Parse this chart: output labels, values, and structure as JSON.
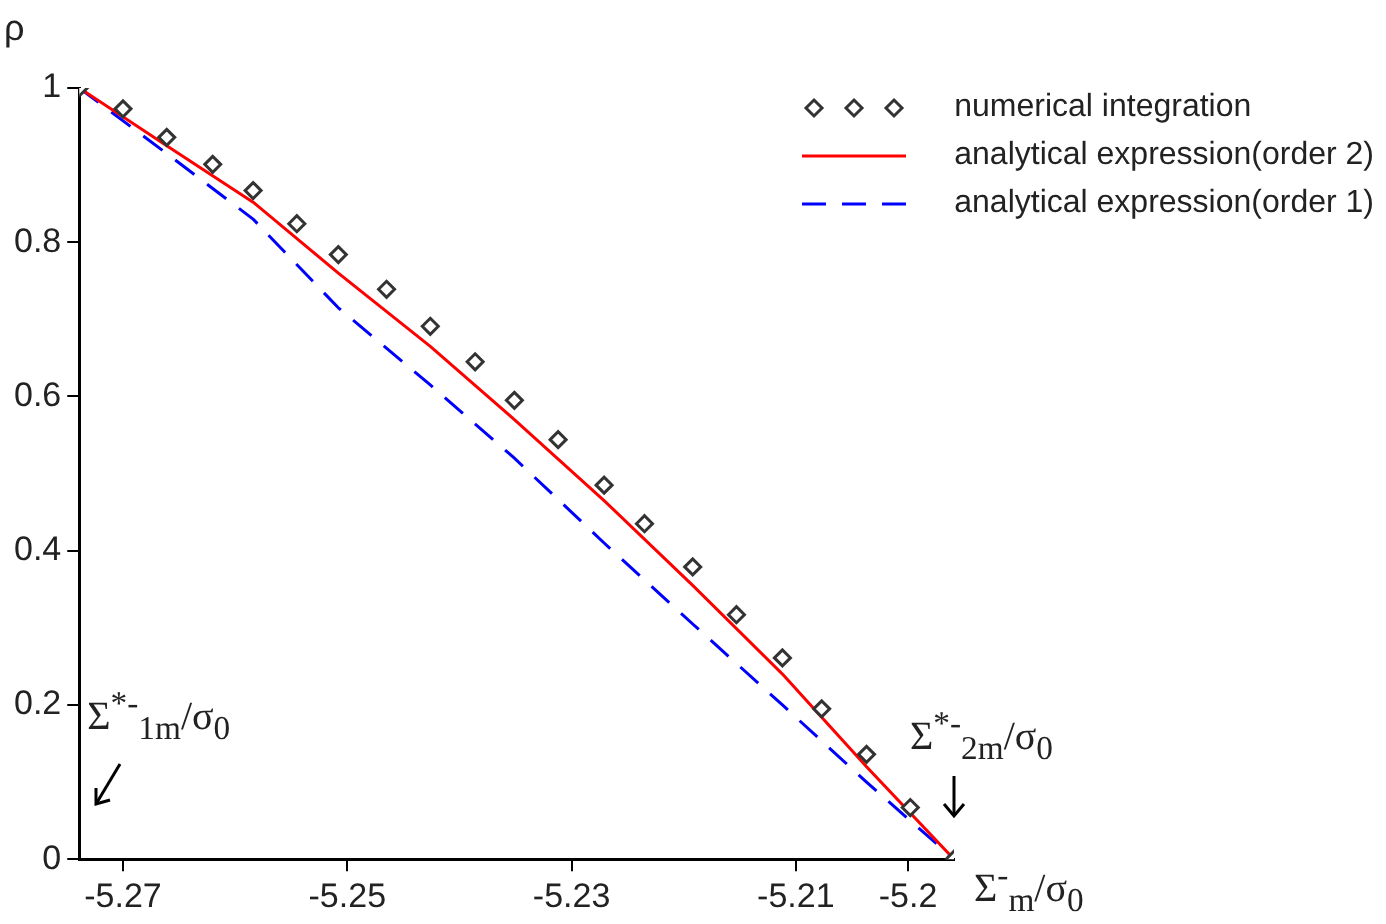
{
  "chart_data": {
    "type": "scatter",
    "xlabel": "Σ$^{-}$$_{m}$/σ$_{0}$",
    "ylabel": "ρ",
    "xlim": [
      -5.2739,
      -5.1959
    ],
    "xticks": [
      -5.27,
      -5.25,
      -5.23,
      -5.21,
      -5.2
    ],
    "ylim": [
      0,
      1
    ],
    "yticks": [
      0,
      0.2,
      0.4,
      0.6,
      0.8,
      1
    ],
    "grid": false,
    "legend": "top right",
    "series": [
      {
        "name": "numerical integration",
        "marker": "diamond",
        "color": "#333333",
        "x": [
          -5.2739,
          -5.27,
          -5.2661,
          -5.262,
          -5.2584,
          -5.2545,
          -5.2508,
          -5.2465,
          -5.2426,
          -5.2386,
          -5.2351,
          -5.2312,
          -5.2271,
          -5.2235,
          -5.2192,
          -5.2153,
          -5.2112,
          -5.2077,
          -5.2037,
          -5.1998,
          -5.1959
        ],
        "values": [
          1,
          0.973,
          0.936,
          0.901,
          0.867,
          0.824,
          0.784,
          0.739,
          0.691,
          0.645,
          0.595,
          0.544,
          0.485,
          0.435,
          0.379,
          0.317,
          0.261,
          0.195,
          0.136,
          0.067,
          0
        ]
      },
      {
        "name": "analytical expression(order 2)",
        "type": "line",
        "line_style": "solid",
        "color": "#ff0000",
        "x": [
          -5.2739,
          -5.2661,
          -5.2584,
          -5.2508,
          -5.2426,
          -5.2351,
          -5.2271,
          -5.2192,
          -5.2112,
          -5.2037,
          -5.1959
        ],
        "values": [
          1,
          0.925,
          0.852,
          0.76,
          0.665,
          0.57,
          0.465,
          0.355,
          0.24,
          0.12,
          0
        ]
      },
      {
        "name": "analytical expression(order 1)",
        "type": "line",
        "line_style": "dashed",
        "color": "#0000ff",
        "x": [
          -5.2739,
          -5.2661,
          -5.2584,
          -5.2508,
          -5.2426,
          -5.2351,
          -5.2271,
          -5.2192,
          -5.2112,
          -5.2037,
          -5.1959
        ],
        "values": [
          1,
          0.915,
          0.83,
          0.715,
          0.615,
          0.52,
          0.41,
          0.305,
          0.2,
          0.1,
          0
        ]
      }
    ],
    "annotations": [
      "Σ$^{*-}$$_{1m}$/σ$_{0}$",
      "Σ$^{*-}$$_{2m}$/σ$_{0}$"
    ]
  }
}
